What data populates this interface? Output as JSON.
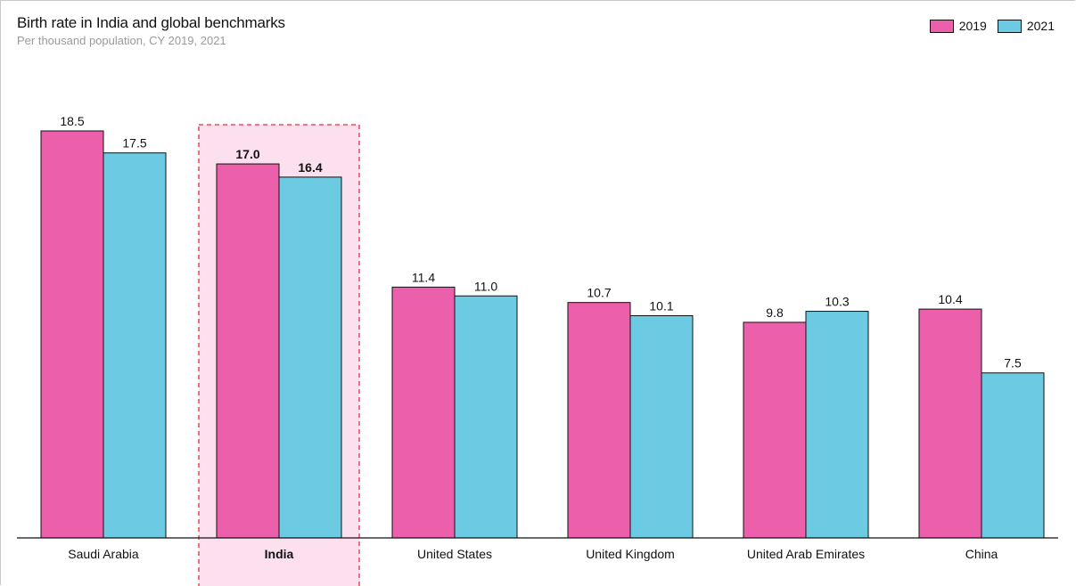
{
  "chart_data": {
    "type": "bar",
    "title": "Birth rate in India and global benchmarks",
    "subtitle": "Per thousand population, CY 2019, 2021",
    "categories": [
      "Saudi Arabia",
      "India",
      "United States",
      "United Kingdom",
      "United Arab Emirates",
      "China"
    ],
    "highlight_category": "India",
    "series": [
      {
        "name": "2019",
        "color": "#ec5fab",
        "values": [
          18.5,
          17.0,
          11.4,
          10.7,
          9.8,
          10.4
        ],
        "labels": [
          "18.5",
          "17.0",
          "11.4",
          "10.7",
          "9.8",
          "10.4"
        ]
      },
      {
        "name": "2021",
        "color": "#6ccbe3",
        "values": [
          17.5,
          16.4,
          11.0,
          10.1,
          10.3,
          7.5
        ],
        "labels": [
          "17.5",
          "16.4",
          "11.0",
          "10.1",
          "10.3",
          "7.5"
        ]
      }
    ],
    "ylim": [
      0,
      18.5
    ],
    "grid": false,
    "legend": "top-right",
    "highlight_color": "#fde0ef",
    "highlight_border": "#e0303a"
  }
}
